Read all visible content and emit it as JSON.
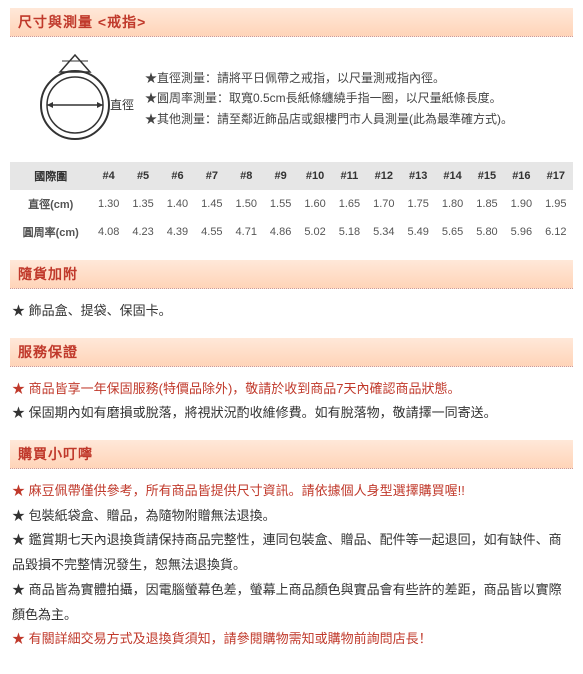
{
  "sections": {
    "size_measure": {
      "title": "尺寸與測量 <戒指>",
      "diagram_label": "直徑",
      "lines": [
        "★直徑測量：請將平日佩帶之戒指，以尺量測戒指內徑。",
        "★圓周率測量：取寬0.5cm長紙條纏繞手指一圈，以尺量紙條長度。",
        "★其他測量：請至鄰近飾品店或銀樓門市人員測量(此為最準確方式)。"
      ]
    },
    "table": {
      "header_label": "國際圍",
      "sizes": [
        "#4",
        "#5",
        "#6",
        "#7",
        "#8",
        "#9",
        "#10",
        "#11",
        "#12",
        "#13",
        "#14",
        "#15",
        "#16",
        "#17"
      ],
      "diameter_label": "直徑(cm)",
      "diameters": [
        "1.30",
        "1.35",
        "1.40",
        "1.45",
        "1.50",
        "1.55",
        "1.60",
        "1.65",
        "1.70",
        "1.75",
        "1.80",
        "1.85",
        "1.90",
        "1.95"
      ],
      "circumference_label": "圓周率(cm)",
      "circumferences": [
        "4.08",
        "4.23",
        "4.39",
        "4.55",
        "4.71",
        "4.86",
        "5.02",
        "5.18",
        "5.34",
        "5.49",
        "5.65",
        "5.80",
        "5.96",
        "6.12"
      ]
    },
    "included": {
      "title": "隨貨加附",
      "items": [
        {
          "text": "飾品盒、提袋、保固卡。",
          "red": false
        }
      ]
    },
    "warranty": {
      "title": "服務保證",
      "items": [
        {
          "text": "商品皆享一年保固服務(特價品除外)，敬請於收到商品7天內確認商品狀態。",
          "red": true
        },
        {
          "text": "保固期內如有磨損或脫落，將視狀況酌收維修費。如有脫落物，敬請擇一同寄送。",
          "red": false
        }
      ]
    },
    "notes": {
      "title": "購買小叮嚀",
      "items": [
        {
          "text": "麻豆佩帶僅供參考，所有商品皆提供尺寸資訊。請依據個人身型選擇購買喔!!",
          "red": true
        },
        {
          "text": "包裝紙袋盒、贈品，為隨物附贈無法退換。",
          "red": false
        },
        {
          "text": "鑑賞期七天內退換貨請保持商品完整性，連同包裝盒、贈品、配件等一起退回，如有缺件、商品毀損不完整情況發生，恕無法退換貨。",
          "red": false
        },
        {
          "text": "商品皆為實體拍攝，因電腦螢幕色差，螢幕上商品顏色與實品會有些許的差距，商品皆以實際顏色為主。",
          "red": false
        },
        {
          "text": "有關詳細交易方式及退換貨須知，請參閱購物需知或購物前詢問店長！",
          "red": true
        }
      ]
    }
  },
  "colors": {
    "header_text": "#c0392b",
    "header_bg_top": "#ffe8d9",
    "header_bg_bottom": "#ffd4b8",
    "table_header_bg": "#e6e6e6"
  }
}
